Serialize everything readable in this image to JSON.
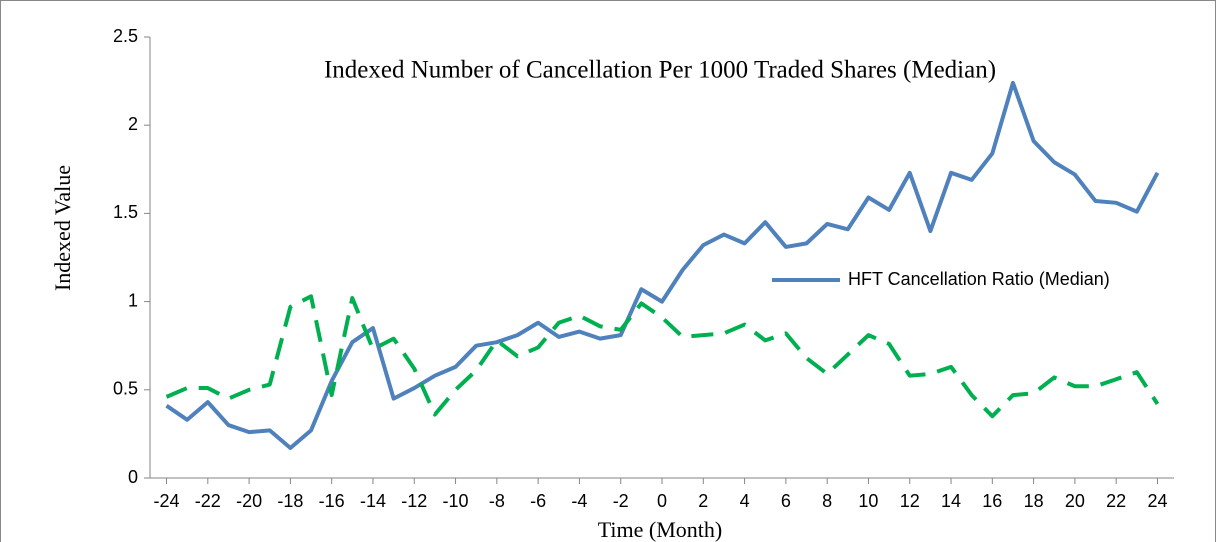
{
  "chart_data": {
    "type": "line",
    "title": "Indexed Number of Cancellation Per 1000 Traded Shares (Median)",
    "x_label": "Time (Month)",
    "y_label": "Indexed Value",
    "x": [
      -24,
      -23,
      -22,
      -21,
      -20,
      -19,
      -18,
      -17,
      -16,
      -15,
      -14,
      -13,
      -12,
      -11,
      -10,
      -9,
      -8,
      -7,
      -6,
      -5,
      -4,
      -3,
      -2,
      -1,
      0,
      1,
      2,
      3,
      4,
      5,
      6,
      7,
      8,
      9,
      10,
      11,
      12,
      13,
      14,
      15,
      16,
      17,
      18,
      19,
      20,
      21,
      22,
      23,
      24
    ],
    "series": [
      {
        "name": "HFT Cancellation Ratio (Median)",
        "color": "#4f81bd",
        "dash": false,
        "values": [
          0.41,
          0.33,
          0.43,
          0.3,
          0.26,
          0.27,
          0.17,
          0.27,
          0.55,
          0.77,
          0.85,
          0.45,
          0.51,
          0.58,
          0.63,
          0.75,
          0.77,
          0.81,
          0.88,
          0.8,
          0.83,
          0.79,
          0.81,
          1.07,
          1.0,
          1.18,
          1.32,
          1.38,
          1.33,
          1.45,
          1.31,
          1.33,
          1.44,
          1.41,
          1.59,
          1.52,
          1.73,
          1.4,
          1.73,
          1.69,
          1.84,
          2.24,
          1.91,
          1.79,
          1.72,
          1.57,
          1.56,
          1.51,
          1.73
        ]
      },
      {
        "color": "#00b050",
        "dash": true,
        "values": [
          0.46,
          0.51,
          0.51,
          0.45,
          0.5,
          0.53,
          0.97,
          1.03,
          0.47,
          1.02,
          0.73,
          0.79,
          0.62,
          0.36,
          0.5,
          0.61,
          0.78,
          0.69,
          0.74,
          0.88,
          0.92,
          0.86,
          0.84,
          0.99,
          0.91,
          0.8,
          0.81,
          0.82,
          0.87,
          0.78,
          0.82,
          0.68,
          0.59,
          0.7,
          0.81,
          0.76,
          0.58,
          0.59,
          0.63,
          0.47,
          0.35,
          0.47,
          0.48,
          0.57,
          0.52,
          0.52,
          0.56,
          0.6,
          0.42
        ]
      }
    ],
    "xlim": [
      -24.8,
      24.8
    ],
    "xticks": [
      -24,
      -22,
      -20,
      -18,
      -16,
      -14,
      -12,
      -10,
      -8,
      -6,
      -4,
      -2,
      0,
      2,
      4,
      6,
      8,
      10,
      12,
      14,
      16,
      18,
      20,
      22,
      24
    ],
    "ylim": [
      0,
      2.5
    ],
    "yticks": [
      0,
      0.5,
      1,
      1.5,
      2,
      2.5
    ],
    "grid": false,
    "legend": "right"
  }
}
